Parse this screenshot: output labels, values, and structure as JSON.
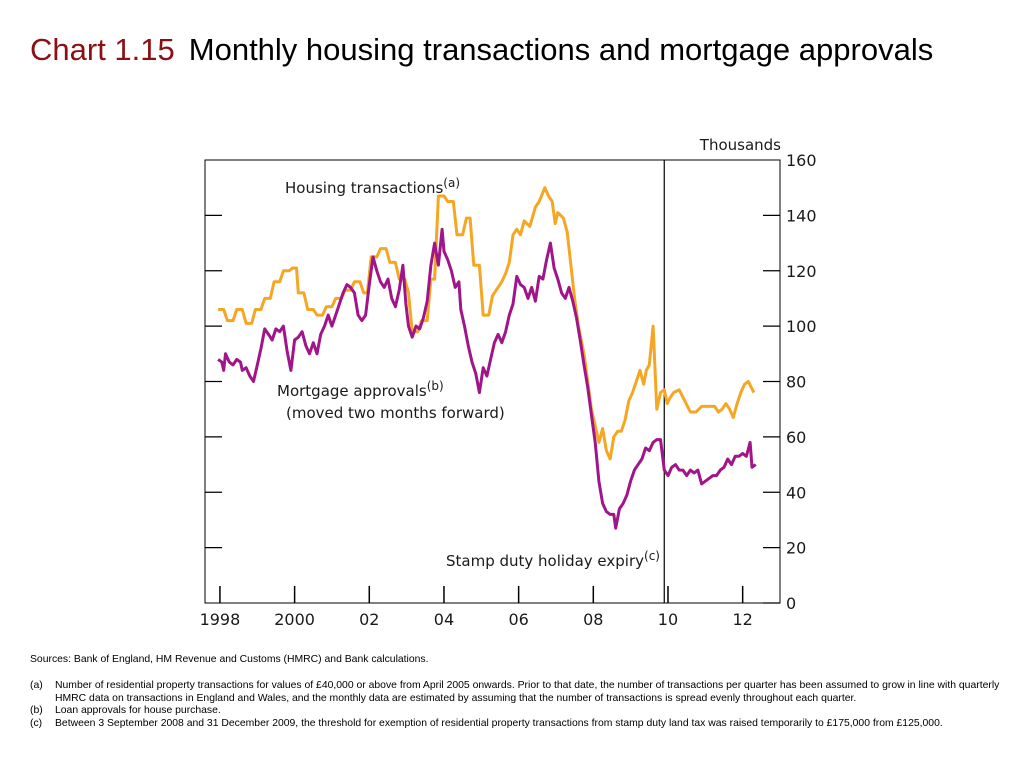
{
  "title": {
    "number": "Chart 1.15",
    "text": "Monthly housing transactions and mortgage approvals"
  },
  "colors": {
    "housing": "#f5a623",
    "mortgage": "#a0168a",
    "title_number": "#8b0f14",
    "axis": "#000000"
  },
  "chart_data": {
    "type": "line",
    "unit_label": "Thousands",
    "ylim": [
      0,
      160
    ],
    "yticks": [
      "0",
      "20",
      "40",
      "60",
      "80",
      "100",
      "120",
      "140",
      "160"
    ],
    "xlim": [
      1997.6,
      2013.0
    ],
    "xticks": [
      {
        "year": 1998,
        "label": "1998"
      },
      {
        "year": 2000,
        "label": "2000"
      },
      {
        "year": 2002,
        "label": "02"
      },
      {
        "year": 2004,
        "label": "04"
      },
      {
        "year": 2006,
        "label": "06"
      },
      {
        "year": 2008,
        "label": "08"
      },
      {
        "year": 2010,
        "label": "10"
      },
      {
        "year": 2012,
        "label": "12"
      }
    ],
    "grid": false,
    "vline": {
      "x": 2009.9
    },
    "annotations": [
      {
        "id": "housing",
        "text": "Housing transactions",
        "sup": "(a)"
      },
      {
        "id": "mortgage",
        "text": "Mortgage approvals",
        "sup": "(b)",
        "line2": "(moved two months forward)"
      },
      {
        "id": "stamp",
        "text": "Stamp duty holiday expiry",
        "sup": "(c)"
      }
    ],
    "series": [
      {
        "name": "Housing transactions",
        "points": [
          [
            1997.95,
            106
          ],
          [
            1998.1,
            106
          ],
          [
            1998.2,
            102
          ],
          [
            1998.35,
            102
          ],
          [
            1998.45,
            106
          ],
          [
            1998.6,
            106
          ],
          [
            1998.7,
            101
          ],
          [
            1998.85,
            101
          ],
          [
            1998.95,
            106
          ],
          [
            1999.1,
            106
          ],
          [
            1999.2,
            110
          ],
          [
            1999.35,
            110
          ],
          [
            1999.45,
            116
          ],
          [
            1999.6,
            116
          ],
          [
            1999.7,
            120
          ],
          [
            1999.85,
            120
          ],
          [
            1999.95,
            121
          ],
          [
            2000.05,
            121
          ],
          [
            2000.1,
            112
          ],
          [
            2000.25,
            112
          ],
          [
            2000.35,
            106
          ],
          [
            2000.5,
            106
          ],
          [
            2000.6,
            104
          ],
          [
            2000.75,
            104
          ],
          [
            2000.85,
            107
          ],
          [
            2001.0,
            107
          ],
          [
            2001.1,
            110
          ],
          [
            2001.25,
            110
          ],
          [
            2001.35,
            113
          ],
          [
            2001.5,
            113
          ],
          [
            2001.6,
            116
          ],
          [
            2001.75,
            116
          ],
          [
            2001.85,
            112
          ],
          [
            2001.95,
            112
          ],
          [
            2002.05,
            125
          ],
          [
            2002.2,
            125
          ],
          [
            2002.3,
            128
          ],
          [
            2002.45,
            128
          ],
          [
            2002.55,
            123
          ],
          [
            2002.7,
            123
          ],
          [
            2002.8,
            117
          ],
          [
            2002.95,
            117
          ],
          [
            2003.05,
            112
          ],
          [
            2003.15,
            98
          ],
          [
            2003.3,
            98
          ],
          [
            2003.4,
            102
          ],
          [
            2003.55,
            102
          ],
          [
            2003.65,
            117
          ],
          [
            2003.75,
            117
          ],
          [
            2003.85,
            147
          ],
          [
            2004.0,
            147
          ],
          [
            2004.1,
            145
          ],
          [
            2004.25,
            145
          ],
          [
            2004.35,
            133
          ],
          [
            2004.5,
            133
          ],
          [
            2004.6,
            139
          ],
          [
            2004.7,
            139
          ],
          [
            2004.8,
            122
          ],
          [
            2004.95,
            122
          ],
          [
            2005.05,
            104
          ],
          [
            2005.2,
            104
          ],
          [
            2005.3,
            111
          ],
          [
            2005.45,
            114
          ],
          [
            2005.55,
            116
          ],
          [
            2005.65,
            119
          ],
          [
            2005.75,
            123
          ],
          [
            2005.85,
            133
          ],
          [
            2005.95,
            135
          ],
          [
            2006.05,
            133
          ],
          [
            2006.15,
            138
          ],
          [
            2006.3,
            136
          ],
          [
            2006.45,
            143
          ],
          [
            2006.55,
            145
          ],
          [
            2006.7,
            150
          ],
          [
            2006.8,
            147
          ],
          [
            2006.9,
            145
          ],
          [
            2006.98,
            137
          ],
          [
            2007.05,
            141
          ],
          [
            2007.2,
            139
          ],
          [
            2007.3,
            134
          ],
          [
            2007.4,
            122
          ],
          [
            2007.5,
            110
          ],
          [
            2007.6,
            100
          ],
          [
            2007.75,
            90
          ],
          [
            2007.85,
            80
          ],
          [
            2007.95,
            70
          ],
          [
            2008.05,
            64
          ],
          [
            2008.15,
            58
          ],
          [
            2008.25,
            63
          ],
          [
            2008.35,
            55
          ],
          [
            2008.45,
            52
          ],
          [
            2008.55,
            60
          ],
          [
            2008.65,
            62
          ],
          [
            2008.75,
            62
          ],
          [
            2008.85,
            66
          ],
          [
            2008.95,
            73
          ],
          [
            2009.05,
            76
          ],
          [
            2009.15,
            80
          ],
          [
            2009.25,
            84
          ],
          [
            2009.35,
            79
          ],
          [
            2009.42,
            84
          ],
          [
            2009.5,
            86
          ],
          [
            2009.6,
            100
          ],
          [
            2009.7,
            70
          ],
          [
            2009.8,
            76
          ],
          [
            2009.9,
            77
          ],
          [
            2009.98,
            72
          ],
          [
            2010.05,
            74
          ],
          [
            2010.15,
            76
          ],
          [
            2010.3,
            77
          ],
          [
            2010.45,
            73
          ],
          [
            2010.6,
            69
          ],
          [
            2010.75,
            69
          ],
          [
            2010.9,
            71
          ],
          [
            2011.05,
            71
          ],
          [
            2011.25,
            71
          ],
          [
            2011.35,
            69
          ],
          [
            2011.45,
            70
          ],
          [
            2011.55,
            72
          ],
          [
            2011.65,
            70
          ],
          [
            2011.75,
            67
          ],
          [
            2011.85,
            72
          ],
          [
            2011.95,
            76
          ],
          [
            2012.05,
            79
          ],
          [
            2012.15,
            80
          ],
          [
            2012.3,
            76
          ]
        ]
      },
      {
        "name": "Mortgage approvals",
        "points": [
          [
            1997.95,
            88
          ],
          [
            1998.05,
            87
          ],
          [
            1998.1,
            84
          ],
          [
            1998.15,
            90
          ],
          [
            1998.25,
            87
          ],
          [
            1998.35,
            86
          ],
          [
            1998.45,
            88
          ],
          [
            1998.55,
            87
          ],
          [
            1998.6,
            84
          ],
          [
            1998.7,
            85
          ],
          [
            1998.8,
            82
          ],
          [
            1998.9,
            80
          ],
          [
            1999.0,
            86
          ],
          [
            1999.1,
            92
          ],
          [
            1999.2,
            99
          ],
          [
            1999.3,
            97
          ],
          [
            1999.4,
            95
          ],
          [
            1999.5,
            99
          ],
          [
            1999.6,
            98
          ],
          [
            1999.7,
            100
          ],
          [
            1999.8,
            91
          ],
          [
            1999.9,
            84
          ],
          [
            2000.0,
            95
          ],
          [
            2000.1,
            96
          ],
          [
            2000.2,
            98
          ],
          [
            2000.3,
            93
          ],
          [
            2000.4,
            90
          ],
          [
            2000.5,
            94
          ],
          [
            2000.6,
            90
          ],
          [
            2000.7,
            97
          ],
          [
            2000.8,
            100
          ],
          [
            2000.9,
            104
          ],
          [
            2001.0,
            100
          ],
          [
            2001.1,
            104
          ],
          [
            2001.2,
            108
          ],
          [
            2001.3,
            112
          ],
          [
            2001.4,
            115
          ],
          [
            2001.5,
            114
          ],
          [
            2001.6,
            112
          ],
          [
            2001.7,
            104
          ],
          [
            2001.8,
            102
          ],
          [
            2001.9,
            104
          ],
          [
            2002.0,
            115
          ],
          [
            2002.1,
            125
          ],
          [
            2002.2,
            120
          ],
          [
            2002.3,
            116
          ],
          [
            2002.4,
            114
          ],
          [
            2002.5,
            117
          ],
          [
            2002.6,
            110
          ],
          [
            2002.7,
            107
          ],
          [
            2002.8,
            113
          ],
          [
            2002.9,
            122
          ],
          [
            2002.98,
            108
          ],
          [
            2003.05,
            100
          ],
          [
            2003.15,
            96
          ],
          [
            2003.25,
            100
          ],
          [
            2003.35,
            99
          ],
          [
            2003.45,
            103
          ],
          [
            2003.55,
            109
          ],
          [
            2003.65,
            122
          ],
          [
            2003.75,
            130
          ],
          [
            2003.85,
            122
          ],
          [
            2003.95,
            135
          ],
          [
            2004.0,
            127
          ],
          [
            2004.1,
            124
          ],
          [
            2004.2,
            120
          ],
          [
            2004.3,
            114
          ],
          [
            2004.4,
            116
          ],
          [
            2004.45,
            106
          ],
          [
            2004.55,
            100
          ],
          [
            2004.65,
            93
          ],
          [
            2004.75,
            87
          ],
          [
            2004.85,
            83
          ],
          [
            2004.95,
            76
          ],
          [
            2005.05,
            85
          ],
          [
            2005.15,
            82
          ],
          [
            2005.25,
            88
          ],
          [
            2005.35,
            94
          ],
          [
            2005.45,
            97
          ],
          [
            2005.55,
            94
          ],
          [
            2005.65,
            98
          ],
          [
            2005.75,
            104
          ],
          [
            2005.85,
            108
          ],
          [
            2005.95,
            118
          ],
          [
            2006.05,
            115
          ],
          [
            2006.15,
            114
          ],
          [
            2006.25,
            110
          ],
          [
            2006.35,
            114
          ],
          [
            2006.45,
            109
          ],
          [
            2006.55,
            118
          ],
          [
            2006.65,
            117
          ],
          [
            2006.75,
            124
          ],
          [
            2006.85,
            130
          ],
          [
            2006.95,
            121
          ],
          [
            2007.05,
            117
          ],
          [
            2007.15,
            112
          ],
          [
            2007.25,
            110
          ],
          [
            2007.35,
            114
          ],
          [
            2007.45,
            109
          ],
          [
            2007.55,
            103
          ],
          [
            2007.65,
            95
          ],
          [
            2007.75,
            86
          ],
          [
            2007.85,
            78
          ],
          [
            2007.95,
            68
          ],
          [
            2008.05,
            58
          ],
          [
            2008.15,
            44
          ],
          [
            2008.25,
            36
          ],
          [
            2008.35,
            33
          ],
          [
            2008.45,
            32
          ],
          [
            2008.55,
            32
          ],
          [
            2008.6,
            27
          ],
          [
            2008.7,
            34
          ],
          [
            2008.8,
            36
          ],
          [
            2008.9,
            39
          ],
          [
            2009.0,
            44
          ],
          [
            2009.1,
            48
          ],
          [
            2009.2,
            50
          ],
          [
            2009.3,
            52
          ],
          [
            2009.4,
            56
          ],
          [
            2009.5,
            55
          ],
          [
            2009.6,
            58
          ],
          [
            2009.7,
            59
          ],
          [
            2009.8,
            59
          ],
          [
            2009.9,
            48
          ],
          [
            2010.0,
            46
          ],
          [
            2010.1,
            49
          ],
          [
            2010.2,
            50
          ],
          [
            2010.3,
            48
          ],
          [
            2010.4,
            48
          ],
          [
            2010.5,
            46
          ],
          [
            2010.6,
            48
          ],
          [
            2010.7,
            47
          ],
          [
            2010.8,
            48
          ],
          [
            2010.9,
            43
          ],
          [
            2011.0,
            44
          ],
          [
            2011.1,
            45
          ],
          [
            2011.2,
            46
          ],
          [
            2011.3,
            46
          ],
          [
            2011.4,
            48
          ],
          [
            2011.5,
            49
          ],
          [
            2011.6,
            52
          ],
          [
            2011.7,
            50
          ],
          [
            2011.8,
            53
          ],
          [
            2011.9,
            53
          ],
          [
            2012.0,
            54
          ],
          [
            2012.1,
            53
          ],
          [
            2012.2,
            58
          ],
          [
            2012.25,
            49
          ],
          [
            2012.35,
            50
          ]
        ]
      }
    ]
  },
  "sources": "Sources:  Bank of England, HM Revenue and Customs (HMRC) and Bank calculations.",
  "footnotes": [
    {
      "label": "(a)",
      "text": "Number of residential property transactions for values of £40,000 or above from April 2005 onwards.  Prior to that date, the number of transactions per quarter has been assumed to grow in line with quarterly HMRC data on transactions in England and Wales, and the monthly data are estimated by assuming that the number of transactions is spread evenly throughout each quarter."
    },
    {
      "label": "(b)",
      "text": "Loan approvals for house purchase."
    },
    {
      "label": "(c)",
      "text": "Between 3 September 2008 and 31 December 2009, the threshold for exemption of residential property transactions from stamp duty land tax was raised temporarily to £175,000 from £125,000."
    }
  ]
}
